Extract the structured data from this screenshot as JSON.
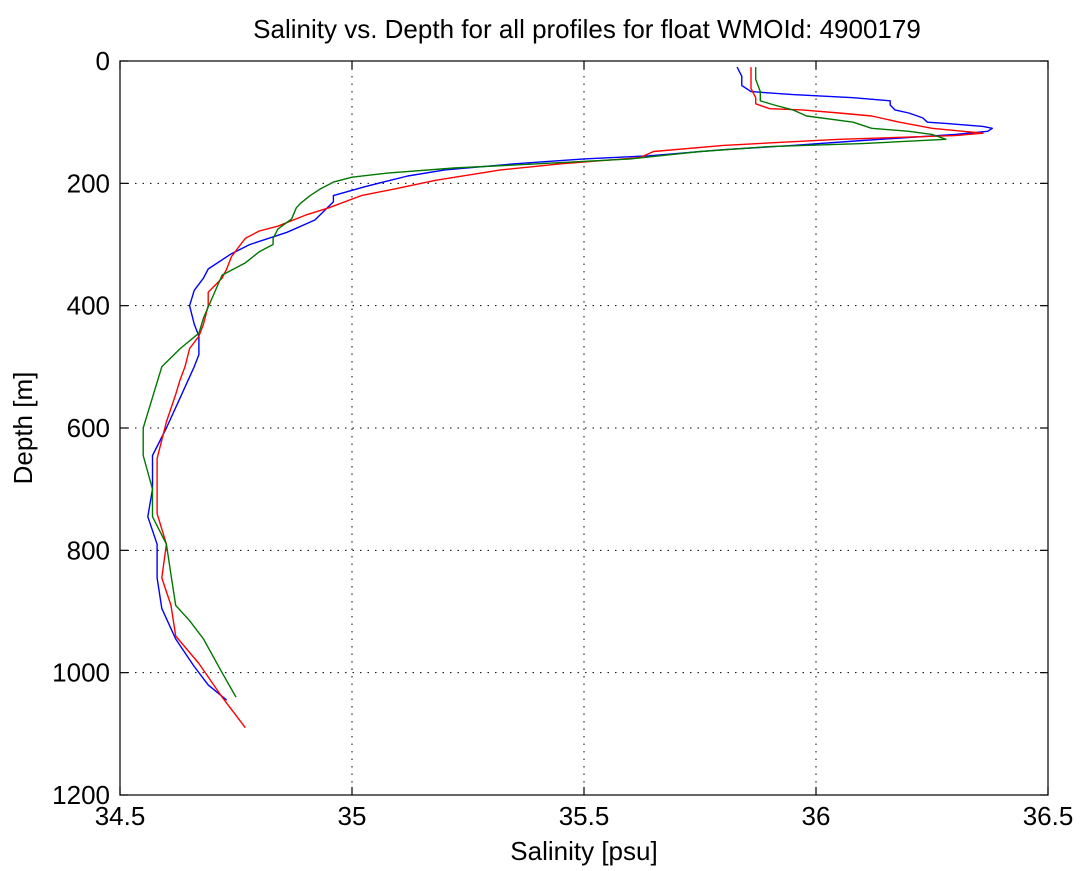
{
  "chart_data": {
    "type": "line",
    "title": "Salinity vs. Depth for all profiles for float WMOId: 4900179",
    "xlabel": "Salinity [psu]",
    "ylabel": "Depth [m]",
    "xlim": [
      34.5,
      36.5
    ],
    "ylim": [
      0,
      1200
    ],
    "y_reversed": true,
    "grid": true,
    "legend": "none",
    "xticks": [
      34.5,
      35,
      35.5,
      36,
      36.5
    ],
    "xtick_labels": [
      "34.5",
      "35",
      "35.5",
      "36",
      "36.5"
    ],
    "yticks": [
      0,
      200,
      400,
      600,
      800,
      1000,
      1200
    ],
    "ytick_labels": [
      "0",
      "200",
      "400",
      "600",
      "800",
      "1000",
      "1200"
    ],
    "series": [
      {
        "color": "#0000ff",
        "points": [
          [
            35.83,
            10
          ],
          [
            35.84,
            25
          ],
          [
            35.84,
            40
          ],
          [
            35.86,
            50
          ],
          [
            35.95,
            55
          ],
          [
            36.08,
            60
          ],
          [
            36.16,
            65
          ],
          [
            36.16,
            72
          ],
          [
            36.17,
            80
          ],
          [
            36.2,
            85
          ],
          [
            36.23,
            93
          ],
          [
            36.24,
            100
          ],
          [
            36.28,
            102
          ],
          [
            36.36,
            107
          ],
          [
            36.38,
            110
          ],
          [
            36.37,
            115
          ],
          [
            36.3,
            120
          ],
          [
            36.1,
            130
          ],
          [
            35.95,
            138
          ],
          [
            35.8,
            145
          ],
          [
            35.64,
            155
          ],
          [
            35.5,
            160
          ],
          [
            35.35,
            168
          ],
          [
            35.2,
            178
          ],
          [
            35.12,
            188
          ],
          [
            35.03,
            205
          ],
          [
            34.96,
            220
          ],
          [
            34.96,
            230
          ],
          [
            34.94,
            245
          ],
          [
            34.92,
            260
          ],
          [
            34.86,
            280
          ],
          [
            34.78,
            300
          ],
          [
            34.74,
            315
          ],
          [
            34.69,
            340
          ],
          [
            34.68,
            355
          ],
          [
            34.66,
            375
          ],
          [
            34.65,
            400
          ],
          [
            34.66,
            430
          ],
          [
            34.67,
            450
          ],
          [
            34.67,
            480
          ],
          [
            34.66,
            500
          ],
          [
            34.63,
            550
          ],
          [
            34.6,
            600
          ],
          [
            34.57,
            645
          ],
          [
            34.57,
            700
          ],
          [
            34.56,
            745
          ],
          [
            34.58,
            790
          ],
          [
            34.58,
            845
          ],
          [
            34.59,
            895
          ],
          [
            34.62,
            945
          ],
          [
            34.66,
            990
          ],
          [
            34.69,
            1020
          ],
          [
            34.73,
            1045
          ]
        ]
      },
      {
        "color": "#ff0000",
        "points": [
          [
            35.86,
            10
          ],
          [
            35.86,
            25
          ],
          [
            35.86,
            45
          ],
          [
            35.87,
            60
          ],
          [
            35.87,
            70
          ],
          [
            35.9,
            78
          ],
          [
            35.97,
            80
          ],
          [
            36.05,
            85
          ],
          [
            36.12,
            90
          ],
          [
            36.18,
            100
          ],
          [
            36.25,
            110
          ],
          [
            36.36,
            118
          ],
          [
            36.3,
            122
          ],
          [
            36.05,
            128
          ],
          [
            35.8,
            138
          ],
          [
            35.65,
            148
          ],
          [
            35.62,
            158
          ],
          [
            35.45,
            168
          ],
          [
            35.32,
            178
          ],
          [
            35.18,
            195
          ],
          [
            35.1,
            208
          ],
          [
            35.02,
            220
          ],
          [
            34.95,
            240
          ],
          [
            34.9,
            252
          ],
          [
            34.84,
            270
          ],
          [
            34.8,
            278
          ],
          [
            34.77,
            290
          ],
          [
            34.76,
            300
          ],
          [
            34.74,
            320
          ],
          [
            34.73,
            340
          ],
          [
            34.72,
            355
          ],
          [
            34.69,
            378
          ],
          [
            34.69,
            400
          ],
          [
            34.68,
            430
          ],
          [
            34.67,
            450
          ],
          [
            34.65,
            470
          ],
          [
            34.64,
            500
          ],
          [
            34.63,
            520
          ],
          [
            34.62,
            545
          ],
          [
            34.6,
            590
          ],
          [
            34.58,
            650
          ],
          [
            34.58,
            700
          ],
          [
            34.58,
            740
          ],
          [
            34.6,
            790
          ],
          [
            34.59,
            845
          ],
          [
            34.61,
            890
          ],
          [
            34.62,
            940
          ],
          [
            34.67,
            985
          ],
          [
            34.72,
            1040
          ],
          [
            34.77,
            1090
          ]
        ]
      },
      {
        "color": "#007700",
        "points": [
          [
            35.87,
            10
          ],
          [
            35.87,
            30
          ],
          [
            35.88,
            50
          ],
          [
            35.88,
            65
          ],
          [
            35.91,
            72
          ],
          [
            35.95,
            80
          ],
          [
            35.98,
            90
          ],
          [
            36.05,
            97
          ],
          [
            36.08,
            100
          ],
          [
            36.12,
            110
          ],
          [
            36.2,
            115
          ],
          [
            36.25,
            120
          ],
          [
            36.28,
            128
          ],
          [
            36.1,
            135
          ],
          [
            35.9,
            140
          ],
          [
            35.75,
            148
          ],
          [
            35.6,
            160
          ],
          [
            35.4,
            168
          ],
          [
            35.22,
            175
          ],
          [
            35.08,
            183
          ],
          [
            35.0,
            190
          ],
          [
            34.96,
            198
          ],
          [
            34.93,
            210
          ],
          [
            34.91,
            220
          ],
          [
            34.89,
            232
          ],
          [
            34.88,
            240
          ],
          [
            34.87,
            258
          ],
          [
            34.84,
            275
          ],
          [
            34.83,
            290
          ],
          [
            34.83,
            300
          ],
          [
            34.8,
            312
          ],
          [
            34.77,
            330
          ],
          [
            34.72,
            350
          ],
          [
            34.7,
            385
          ],
          [
            34.68,
            420
          ],
          [
            34.67,
            445
          ],
          [
            34.63,
            470
          ],
          [
            34.59,
            500
          ],
          [
            34.57,
            550
          ],
          [
            34.55,
            600
          ],
          [
            34.55,
            645
          ],
          [
            34.57,
            700
          ],
          [
            34.57,
            745
          ],
          [
            34.6,
            790
          ],
          [
            34.61,
            840
          ],
          [
            34.62,
            890
          ],
          [
            34.65,
            915
          ],
          [
            34.68,
            945
          ],
          [
            34.72,
            1000
          ],
          [
            34.75,
            1040
          ]
        ]
      }
    ]
  }
}
